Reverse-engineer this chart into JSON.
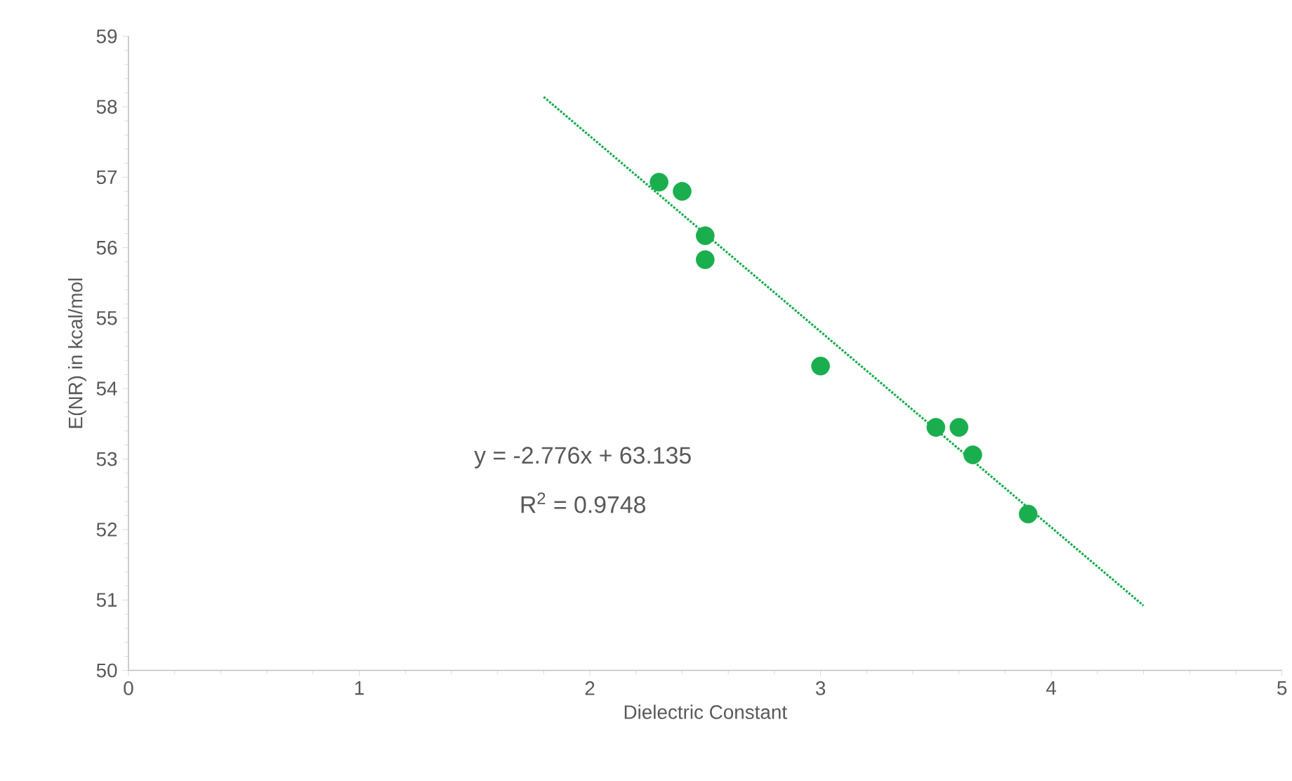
{
  "chart_data": {
    "type": "scatter",
    "xlabel": "Dielectric Constant",
    "ylabel": "E(NR) in kcal/mol",
    "xlim": [
      0,
      5
    ],
    "xticks": [
      0,
      1,
      2,
      3,
      4,
      5
    ],
    "ylim": [
      50,
      59
    ],
    "yticks": [
      50,
      51,
      52,
      53,
      54,
      55,
      56,
      57,
      58,
      59
    ],
    "marker": "circle",
    "series": [
      {
        "color": "#1aae4f",
        "x": [
          2.3,
          2.4,
          2.5,
          2.5,
          3.0,
          3.5,
          3.6,
          3.66,
          3.9
        ],
        "values": [
          56.93,
          56.8,
          56.17,
          55.83,
          54.32,
          53.45,
          53.45,
          53.06,
          52.22
        ]
      },
      {
        "type": "line",
        "color": "#1aae4f",
        "line_style": "dotted",
        "marker": "none",
        "x": [
          1.8,
          4.4
        ],
        "values": [
          58.14,
          50.92
        ]
      }
    ],
    "annotations": [
      "y = -2.776x + 63.135",
      "R$^{2}$ = 0.9748"
    ]
  }
}
